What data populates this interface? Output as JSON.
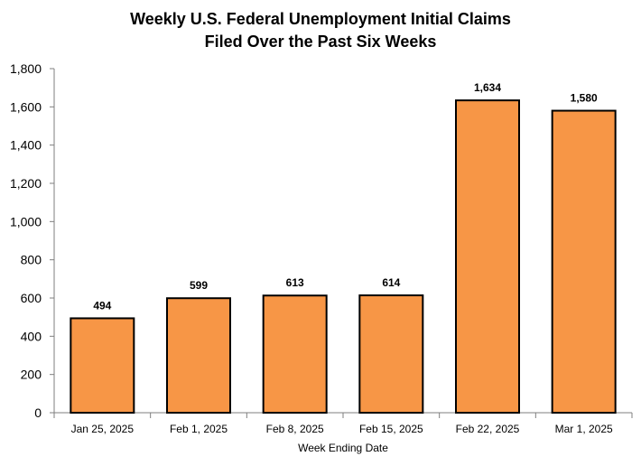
{
  "chart_data": {
    "type": "bar",
    "title": "Weekly U.S. Federal Unemployment Initial Claims",
    "subtitle": "Filed Over the Past Six Weeks",
    "xlabel": "Week Ending Date",
    "ylabel": "",
    "categories": [
      "Jan 25, 2025",
      "Feb 1, 2025",
      "Feb 8, 2025",
      "Feb 15, 2025",
      "Feb 22, 2025",
      "Mar 1, 2025"
    ],
    "values": [
      494,
      599,
      613,
      614,
      1634,
      1580
    ],
    "data_labels": [
      "494",
      "599",
      "613",
      "614",
      "1,634",
      "1,580"
    ],
    "ylim": [
      0,
      1800
    ],
    "yticks": [
      0,
      200,
      400,
      600,
      800,
      1000,
      1200,
      1400,
      1600,
      1800
    ],
    "ytick_labels": [
      "0",
      "200",
      "400",
      "600",
      "800",
      "1,000",
      "1,200",
      "1,400",
      "1,600",
      "1,800"
    ],
    "grid": false,
    "legend": "none",
    "bar_color": "#F79646",
    "bar_edge_color": "#000000"
  }
}
